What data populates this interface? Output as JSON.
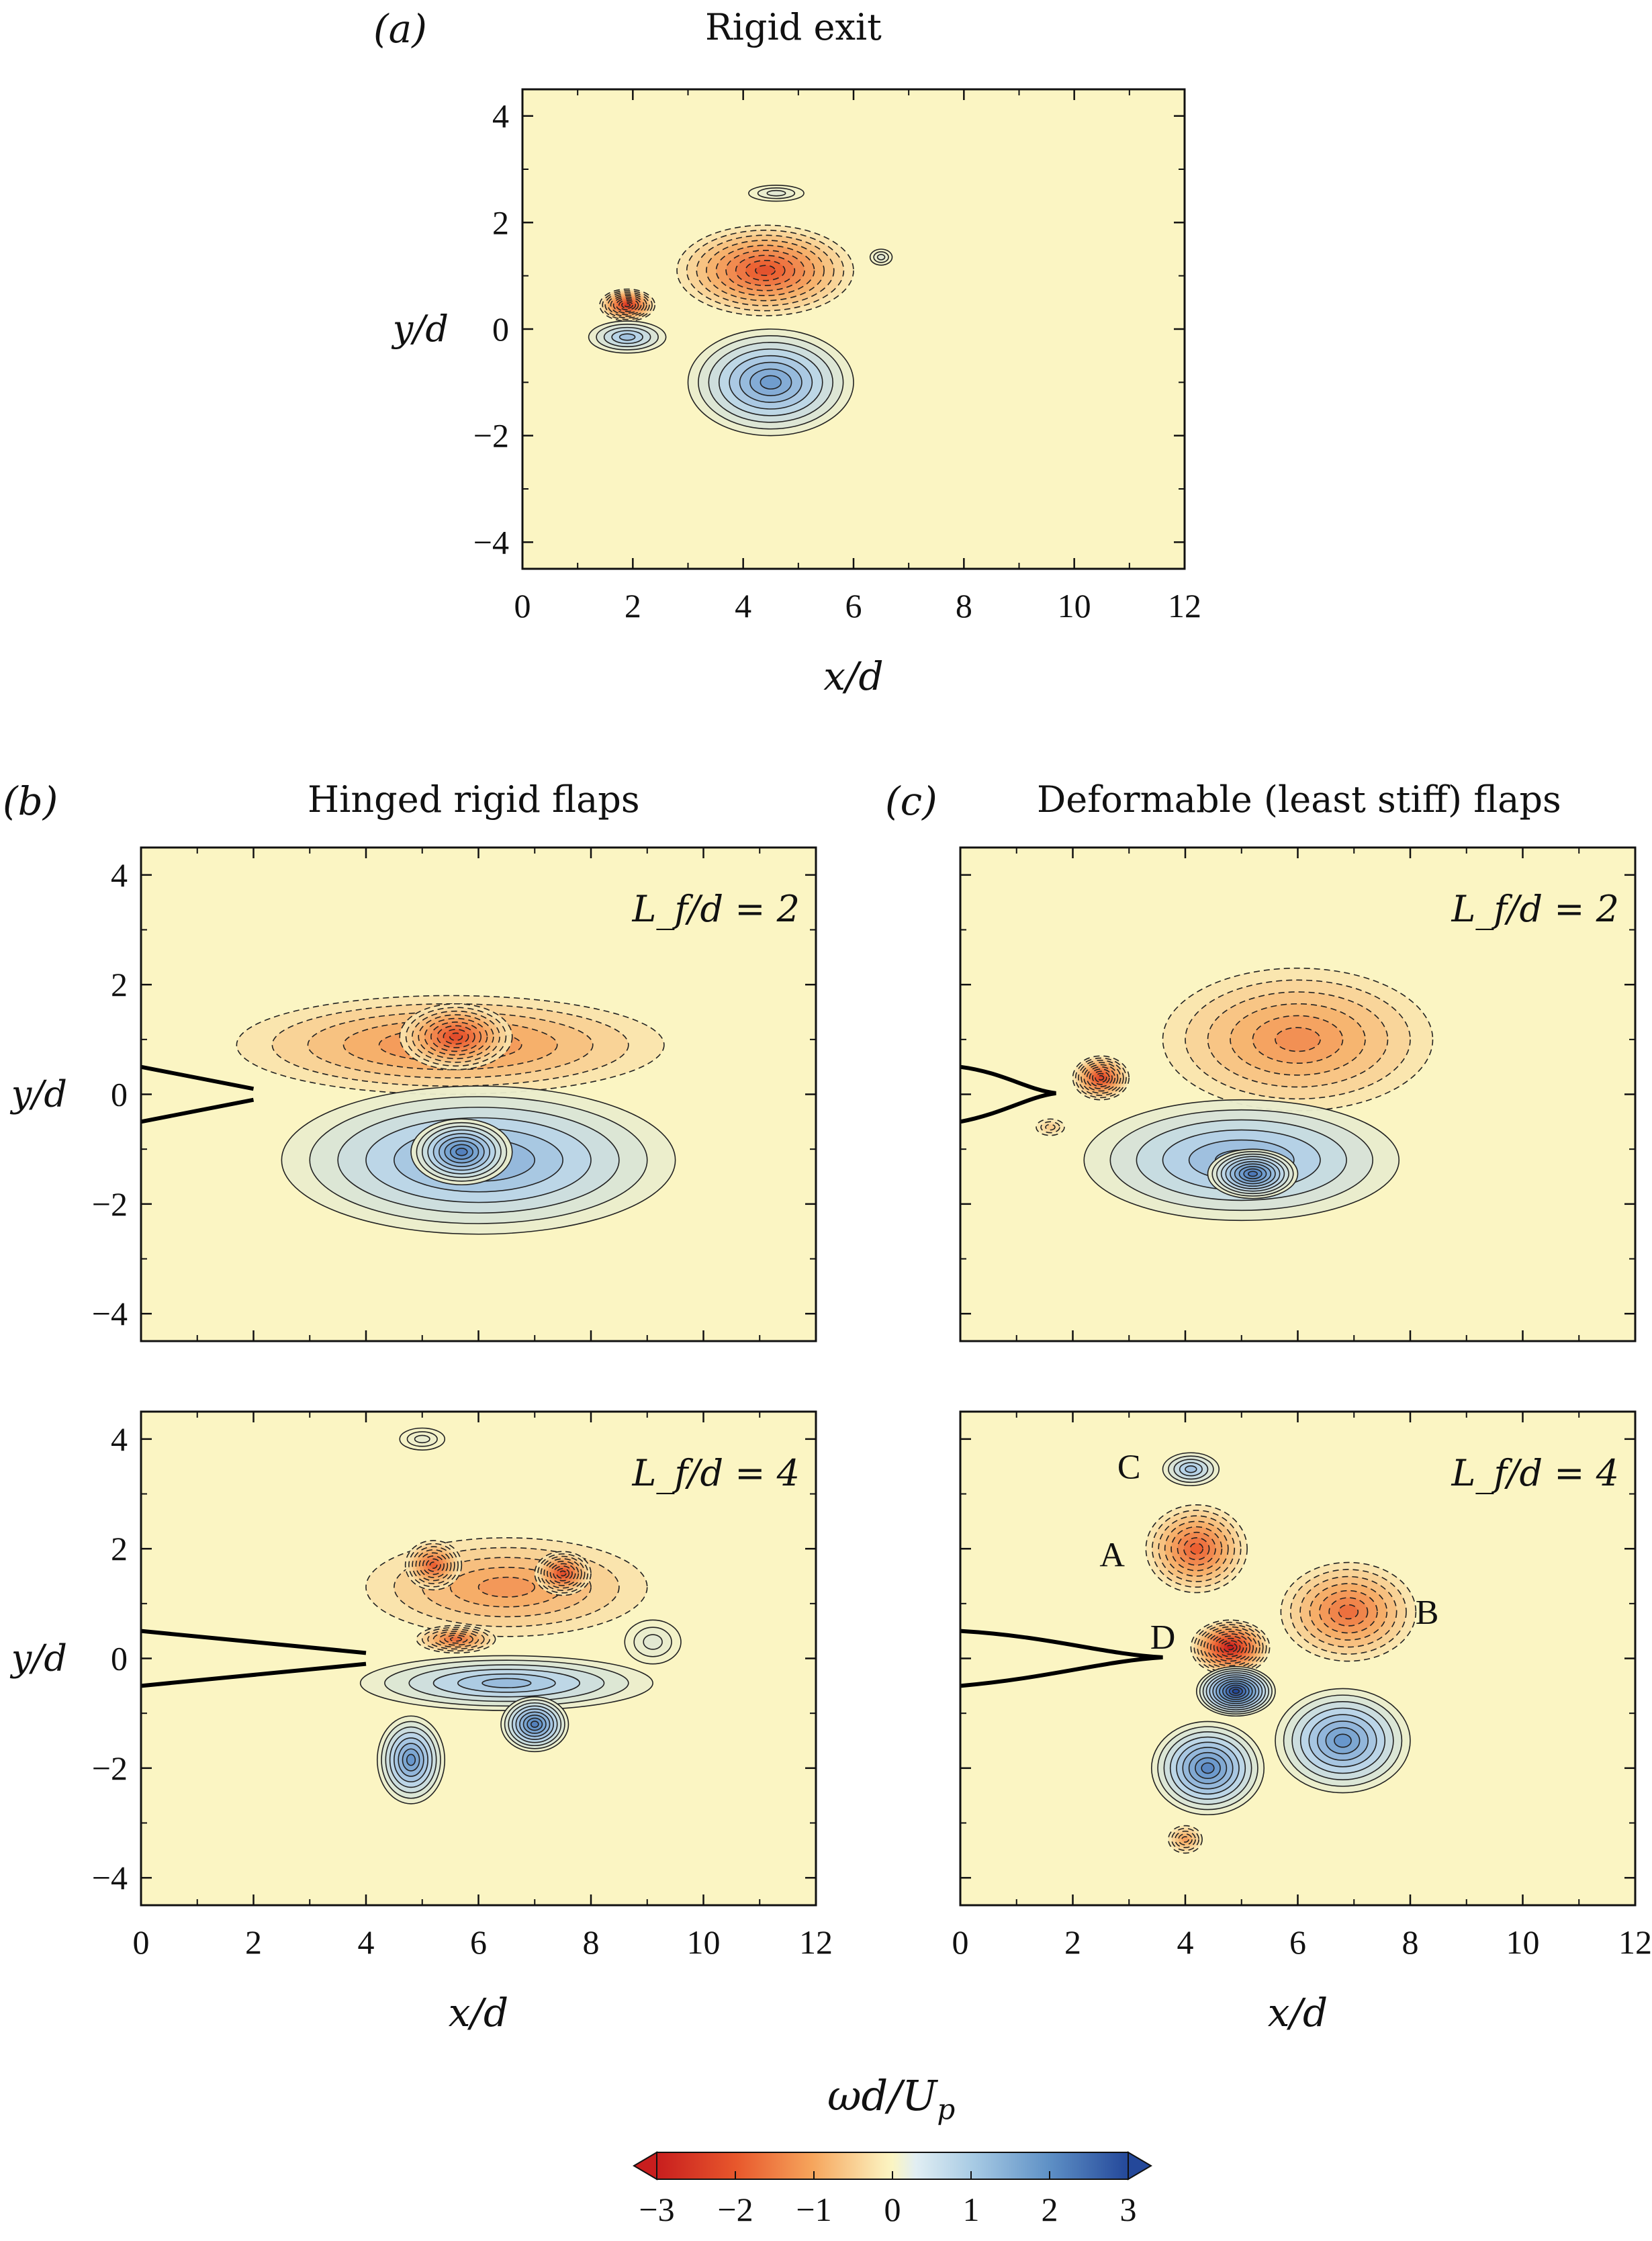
{
  "figure": {
    "colorbar": {
      "label": "ωd/U",
      "label_sub": "p",
      "ticks": [
        "−3",
        "−2",
        "−1",
        "0",
        "1",
        "2",
        "3"
      ],
      "range": [
        -3,
        3
      ],
      "colors": {
        "neg_strong": "#d7301f",
        "neg_mid": "#f4a460",
        "zero": "#fbf5c3",
        "pos_mid": "#8fb8de",
        "pos_strong": "#2c5fa3"
      }
    },
    "background_color": "#fbf5c3"
  },
  "chart_data": [
    {
      "id": "a",
      "type": "heatmap",
      "panel_label": "(a)",
      "title": "Rigid exit",
      "annotation": "",
      "xlabel": "x/d",
      "ylabel": "y/d",
      "xlim": [
        0,
        12
      ],
      "ylim": [
        -4.5,
        4.5
      ],
      "xticks": [
        "0",
        "2",
        "4",
        "6",
        "8",
        "10",
        "12"
      ],
      "yticks": [
        "4",
        "2",
        "0",
        "−2",
        "−4"
      ],
      "show_xticklabels": true,
      "show_yticklabels": true,
      "show_ylabel": true,
      "show_xlabel": true,
      "flap": {
        "kind": "none"
      },
      "vortices": [
        {
          "x": 4.4,
          "y": 1.1,
          "rx": 1.6,
          "ry": 0.85,
          "value": -2.2
        },
        {
          "x": 1.9,
          "y": 0.45,
          "rx": 0.5,
          "ry": 0.3,
          "value": -2.6
        },
        {
          "x": 1.9,
          "y": -0.15,
          "rx": 0.7,
          "ry": 0.3,
          "value": 1.3
        },
        {
          "x": 4.5,
          "y": -1.0,
          "rx": 1.5,
          "ry": 1.0,
          "value": 1.9
        },
        {
          "x": 4.6,
          "y": 2.55,
          "rx": 0.5,
          "ry": 0.15,
          "value": 0.4
        },
        {
          "x": 6.5,
          "y": 1.35,
          "rx": 0.2,
          "ry": 0.15,
          "value": 0.4
        }
      ]
    },
    {
      "id": "b1",
      "type": "heatmap",
      "panel_label": "(b)",
      "title": "Hinged rigid flaps",
      "annotation": "L_f/d = 2",
      "xlabel": "x/d",
      "ylabel": "y/d",
      "xlim": [
        0,
        12
      ],
      "ylim": [
        -4.5,
        4.5
      ],
      "xticks": [
        "0",
        "2",
        "4",
        "6",
        "8",
        "10",
        "12"
      ],
      "yticks": [
        "4",
        "2",
        "0",
        "−2",
        "−4"
      ],
      "show_xticklabels": false,
      "show_yticklabels": true,
      "show_ylabel": true,
      "show_xlabel": false,
      "flap": {
        "kind": "straight",
        "length": 2
      },
      "vortices": [
        {
          "x": 5.5,
          "y": 0.9,
          "rx": 3.8,
          "ry": 0.9,
          "value": -1.5
        },
        {
          "x": 5.6,
          "y": 1.05,
          "rx": 1.0,
          "ry": 0.6,
          "value": -2.3
        },
        {
          "x": 6.0,
          "y": -1.2,
          "rx": 3.5,
          "ry": 1.35,
          "value": 1.7
        },
        {
          "x": 5.7,
          "y": -1.05,
          "rx": 0.9,
          "ry": 0.6,
          "value": 2.3
        }
      ]
    },
    {
      "id": "c1",
      "type": "heatmap",
      "panel_label": "(c)",
      "title": "Deformable (least stiff) flaps",
      "annotation": "L_f/d = 2",
      "xlabel": "x/d",
      "ylabel": "y/d",
      "xlim": [
        0,
        12
      ],
      "ylim": [
        -4.5,
        4.5
      ],
      "xticks": [
        "0",
        "2",
        "4",
        "6",
        "8",
        "10",
        "12"
      ],
      "yticks": [
        "4",
        "2",
        "0",
        "−2",
        "−4"
      ],
      "show_xticklabels": false,
      "show_yticklabels": false,
      "show_ylabel": false,
      "show_xlabel": false,
      "flap": {
        "kind": "curved",
        "length": 1.7
      },
      "vortices": [
        {
          "x": 6.0,
          "y": 1.0,
          "rx": 2.4,
          "ry": 1.3,
          "value": -1.4
        },
        {
          "x": 2.5,
          "y": 0.3,
          "rx": 0.5,
          "ry": 0.4,
          "value": -2.4
        },
        {
          "x": 5.0,
          "y": -1.2,
          "rx": 2.8,
          "ry": 1.1,
          "value": 1.6
        },
        {
          "x": 5.2,
          "y": -1.45,
          "rx": 0.8,
          "ry": 0.45,
          "value": 2.4
        },
        {
          "x": 1.6,
          "y": -0.6,
          "rx": 0.25,
          "ry": 0.15,
          "value": -0.6
        }
      ]
    },
    {
      "id": "b2",
      "type": "heatmap",
      "panel_label": "",
      "title": "",
      "annotation": "L_f/d = 4",
      "xlabel": "x/d",
      "ylabel": "y/d",
      "xlim": [
        0,
        12
      ],
      "ylim": [
        -4.5,
        4.5
      ],
      "xticks": [
        "0",
        "2",
        "4",
        "6",
        "8",
        "10",
        "12"
      ],
      "yticks": [
        "4",
        "2",
        "0",
        "−2",
        "−4"
      ],
      "show_xticklabels": true,
      "show_yticklabels": true,
      "show_ylabel": true,
      "show_xlabel": true,
      "flap": {
        "kind": "straight",
        "length": 4
      },
      "vortices": [
        {
          "x": 6.5,
          "y": 1.3,
          "rx": 2.5,
          "ry": 0.9,
          "value": -1.3
        },
        {
          "x": 5.2,
          "y": 1.7,
          "rx": 0.5,
          "ry": 0.45,
          "value": -2.0
        },
        {
          "x": 7.5,
          "y": 1.55,
          "rx": 0.5,
          "ry": 0.4,
          "value": -2.3
        },
        {
          "x": 5.6,
          "y": 0.35,
          "rx": 0.7,
          "ry": 0.25,
          "value": -1.8
        },
        {
          "x": 6.5,
          "y": -0.45,
          "rx": 2.6,
          "ry": 0.5,
          "value": 1.4
        },
        {
          "x": 7.0,
          "y": -1.2,
          "rx": 0.6,
          "ry": 0.5,
          "value": 2.3
        },
        {
          "x": 4.8,
          "y": -1.85,
          "rx": 0.6,
          "ry": 0.8,
          "value": 2.0
        },
        {
          "x": 9.1,
          "y": 0.3,
          "rx": 0.5,
          "ry": 0.4,
          "value": 0.4
        },
        {
          "x": 5.0,
          "y": 4.0,
          "rx": 0.4,
          "ry": 0.2,
          "value": 0.3
        }
      ]
    },
    {
      "id": "c2",
      "type": "heatmap",
      "panel_label": "",
      "title": "",
      "annotation": "L_f/d = 4",
      "xlabel": "x/d",
      "ylabel": "y/d",
      "xlim": [
        0,
        12
      ],
      "ylim": [
        -4.5,
        4.5
      ],
      "xticks": [
        "0",
        "2",
        "4",
        "6",
        "8",
        "10",
        "12"
      ],
      "yticks": [
        "4",
        "2",
        "0",
        "−2",
        "−4"
      ],
      "show_xticklabels": true,
      "show_yticklabels": false,
      "show_ylabel": false,
      "show_xlabel": true,
      "flap": {
        "kind": "curved",
        "length": 3.6
      },
      "vortex_labels": [
        {
          "text": "C",
          "x": 3.0,
          "y": 3.5
        },
        {
          "text": "A",
          "x": 2.7,
          "y": 1.9
        },
        {
          "text": "B",
          "x": 8.3,
          "y": 0.85
        },
        {
          "text": "D",
          "x": 3.6,
          "y": 0.4
        }
      ],
      "vortices": [
        {
          "x": 4.1,
          "y": 3.45,
          "rx": 0.5,
          "ry": 0.3,
          "value": 1.3
        },
        {
          "x": 4.2,
          "y": 2.0,
          "rx": 0.9,
          "ry": 0.8,
          "value": -2.0
        },
        {
          "x": 6.9,
          "y": 0.85,
          "rx": 1.2,
          "ry": 0.9,
          "value": -1.8
        },
        {
          "x": 4.8,
          "y": 0.2,
          "rx": 0.7,
          "ry": 0.5,
          "value": -3.0
        },
        {
          "x": 4.9,
          "y": -0.6,
          "rx": 0.7,
          "ry": 0.45,
          "value": 3.0
        },
        {
          "x": 4.4,
          "y": -2.0,
          "rx": 1.0,
          "ry": 0.85,
          "value": 2.2
        },
        {
          "x": 6.8,
          "y": -1.5,
          "rx": 1.2,
          "ry": 0.95,
          "value": 2.0
        },
        {
          "x": 4.0,
          "y": -3.3,
          "rx": 0.3,
          "ry": 0.25,
          "value": -1.2
        }
      ]
    }
  ]
}
